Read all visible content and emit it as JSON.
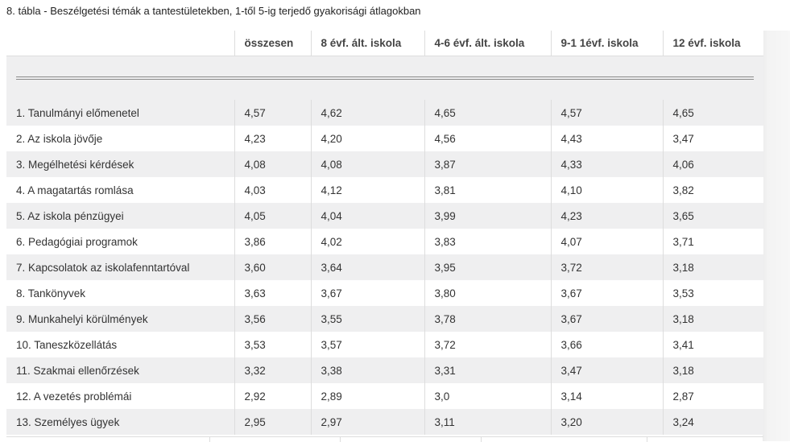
{
  "caption": "8. tábla - Beszélgetési témák a tantestületekben, 1-től 5-ig terjedő gyakorisági átlagokban",
  "columns": [
    "",
    "összesen",
    "8 évf. ált. iskola",
    "4-6 évf. ált. iskola",
    "9-1 1évf. iskola",
    "12 évf. iskola"
  ],
  "rows": [
    [
      "1. Tanulmányi előmenetel",
      "4,57",
      "4,62",
      "4,65",
      "4,57",
      "4,65"
    ],
    [
      "2. Az iskola jövője",
      "4,23",
      "4,20",
      "4,56",
      "4,43",
      "3,47"
    ],
    [
      "3. Megélhetési kérdések",
      "4,08",
      "4,08",
      "3,87",
      "4,33",
      "4,06"
    ],
    [
      "4. A magatartás romlása",
      "4,03",
      "4,12",
      "3,81",
      "4,10",
      "3,82"
    ],
    [
      "5. Az iskola pénzügyei",
      "4,05",
      "4,04",
      "3,99",
      "4,23",
      "3,65"
    ],
    [
      "6. Pedagógiai programok",
      "3,86",
      "4,02",
      "3,83",
      "4,07",
      "3,71"
    ],
    [
      "7. Kapcsolatok az iskolafenntartóval",
      "3,60",
      "3,64",
      "3,95",
      "3,72",
      "3,18"
    ],
    [
      "8. Tankönyvek",
      "3,63",
      "3,67",
      "3,80",
      "3,67",
      "3,53"
    ],
    [
      "9. Munkahelyi körülmények",
      "3,56",
      "3,55",
      "3,78",
      "3,67",
      "3,18"
    ],
    [
      "10. Taneszközellátás",
      "3,53",
      "3,57",
      "3,72",
      "3,66",
      "3,41"
    ],
    [
      "11. Szakmai ellenőrzések",
      "3,32",
      "3,38",
      "3,31",
      "3,47",
      "3,18"
    ],
    [
      "12. A vezetés problémái",
      "2,92",
      "2,89",
      "3,0",
      "3,14",
      "2,87"
    ],
    [
      "13. Személyes ügyek",
      "2,95",
      "2,97",
      "3,11",
      "3,20",
      "3,24"
    ]
  ]
}
